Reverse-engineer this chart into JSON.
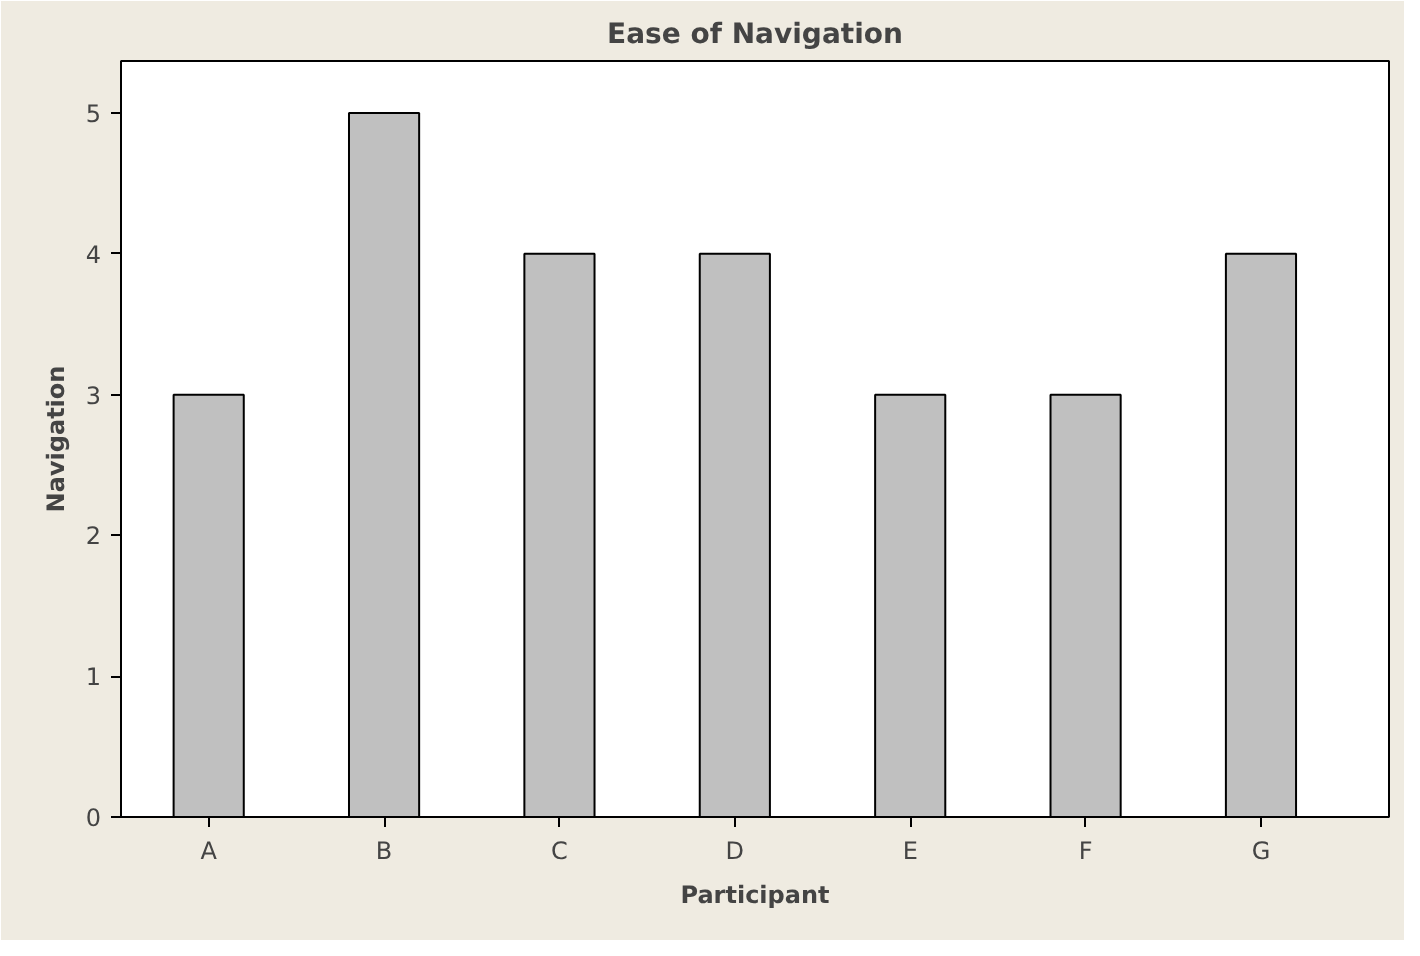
{
  "chart_data": {
    "type": "bar",
    "title": "Ease of Navigation",
    "xlabel": "Participant",
    "ylabel": "Navigation",
    "categories": [
      "A",
      "B",
      "C",
      "D",
      "E",
      "F",
      "G"
    ],
    "values": [
      3,
      5,
      4,
      4,
      3,
      3,
      4
    ],
    "color": "#c0c0c0",
    "ylim": [
      0,
      5.37
    ],
    "yticks": [
      0,
      1,
      2,
      3,
      4,
      5
    ],
    "grid": false
  }
}
